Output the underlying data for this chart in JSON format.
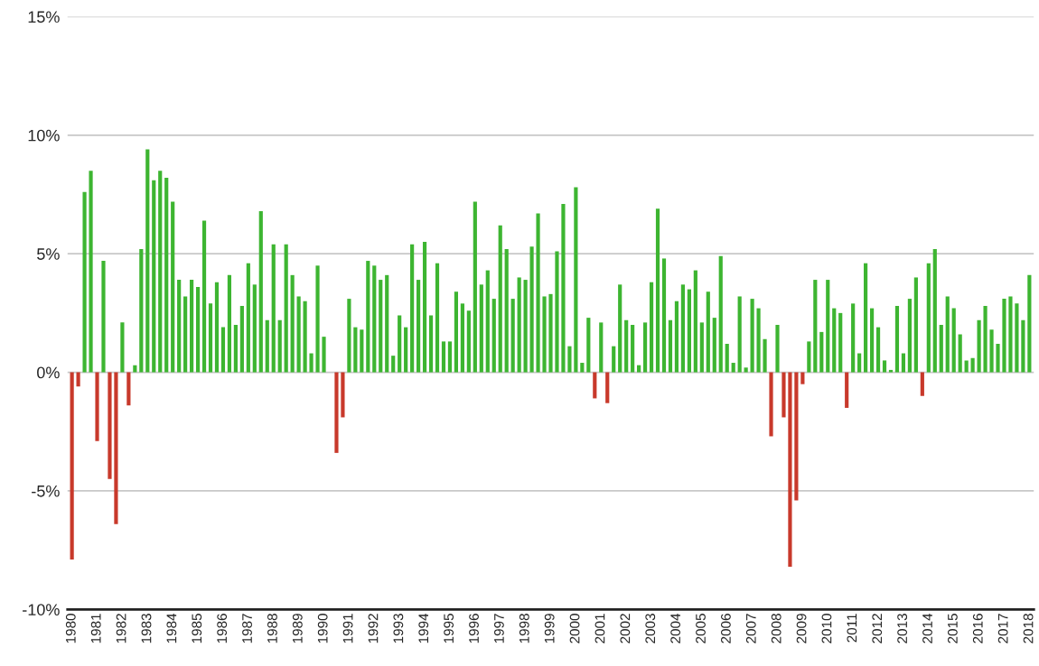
{
  "chart_data": {
    "type": "bar",
    "categories": [
      "1980",
      null,
      null,
      null,
      "1981",
      null,
      null,
      null,
      "1982",
      null,
      null,
      null,
      "1983",
      null,
      null,
      null,
      "1984",
      null,
      null,
      null,
      "1985",
      null,
      null,
      null,
      "1986",
      null,
      null,
      null,
      "1987",
      null,
      null,
      null,
      "1988",
      null,
      null,
      null,
      "1989",
      null,
      null,
      null,
      "1990",
      null,
      null,
      null,
      "1991",
      null,
      null,
      null,
      "1992",
      null,
      null,
      null,
      "1993",
      null,
      null,
      null,
      "1994",
      null,
      null,
      null,
      "1995",
      null,
      null,
      null,
      "1996",
      null,
      null,
      null,
      "1997",
      null,
      null,
      null,
      "1998",
      null,
      null,
      null,
      "1999",
      null,
      null,
      null,
      "2000",
      null,
      null,
      null,
      "2001",
      null,
      null,
      null,
      "2002",
      null,
      null,
      null,
      "2003",
      null,
      null,
      null,
      "2004",
      null,
      null,
      null,
      "2005",
      null,
      null,
      null,
      "2006",
      null,
      null,
      null,
      "2007",
      null,
      null,
      null,
      "2008",
      null,
      null,
      null,
      "2009",
      null,
      null,
      null,
      "2010",
      null,
      null,
      null,
      "2011",
      null,
      null,
      null,
      "2012",
      null,
      null,
      null,
      "2013",
      null,
      null,
      null,
      "2014",
      null,
      null,
      null,
      "2015",
      null,
      null,
      null,
      "2016",
      null,
      null,
      null,
      "2017",
      null,
      null,
      null,
      "2018"
    ],
    "values": [
      -7.9,
      -0.6,
      7.6,
      8.5,
      -2.9,
      4.7,
      -4.5,
      -6.4,
      2.1,
      -1.4,
      0.3,
      5.2,
      9.4,
      8.1,
      8.5,
      8.2,
      7.2,
      3.9,
      3.2,
      3.9,
      3.6,
      6.4,
      2.9,
      3.8,
      1.9,
      4.1,
      2.0,
      2.8,
      4.6,
      3.7,
      6.8,
      2.2,
      5.4,
      2.2,
      5.4,
      4.1,
      3.2,
      3.0,
      0.8,
      4.5,
      1.5,
      0.0,
      -3.4,
      -1.9,
      3.1,
      1.9,
      1.8,
      4.7,
      4.5,
      3.9,
      4.1,
      0.7,
      2.4,
      1.9,
      5.4,
      3.9,
      5.5,
      2.4,
      4.6,
      1.3,
      1.3,
      3.4,
      2.9,
      2.6,
      7.2,
      3.7,
      4.3,
      3.1,
      6.2,
      5.2,
      3.1,
      4.0,
      3.9,
      5.3,
      6.7,
      3.2,
      3.3,
      5.1,
      7.1,
      1.1,
      7.8,
      0.4,
      2.3,
      -1.1,
      2.1,
      -1.3,
      1.1,
      3.7,
      2.2,
      2.0,
      0.3,
      2.1,
      3.8,
      6.9,
      4.8,
      2.2,
      3.0,
      3.7,
      3.5,
      4.3,
      2.1,
      3.4,
      2.3,
      4.9,
      1.2,
      0.4,
      3.2,
      0.2,
      3.1,
      2.7,
      1.4,
      -2.7,
      2.0,
      -1.9,
      -8.2,
      -5.4,
      -0.5,
      1.3,
      3.9,
      1.7,
      3.9,
      2.7,
      2.5,
      -1.5,
      2.9,
      0.8,
      4.6,
      2.7,
      1.9,
      0.5,
      0.1,
      2.8,
      0.8,
      3.1,
      4.0,
      -1.0,
      4.6,
      5.2,
      2.0,
      3.2,
      2.7,
      1.6,
      0.5,
      0.6,
      2.2,
      2.8,
      1.8,
      1.2,
      3.1,
      3.2,
      2.9,
      2.2,
      4.1
    ],
    "colors": [
      "#c8392b",
      "#c8392b",
      "#3db531",
      "#3db531",
      "#c8392b",
      "#3db531",
      "#c8392b",
      "#c8392b",
      "#3db531",
      "#c8392b",
      "#3db531",
      "#3db531",
      "#3db531",
      "#3db531",
      "#3db531",
      "#3db531",
      "#3db531",
      "#3db531",
      "#3db531",
      "#3db531",
      "#3db531",
      "#3db531",
      "#3db531",
      "#3db531",
      "#3db531",
      "#3db531",
      "#3db531",
      "#3db531",
      "#3db531",
      "#3db531",
      "#3db531",
      "#3db531",
      "#3db531",
      "#3db531",
      "#3db531",
      "#3db531",
      "#3db531",
      "#3db531",
      "#3db531",
      "#3db531",
      "#3db531",
      "#3db531",
      "#c8392b",
      "#c8392b",
      "#3db531",
      "#3db531",
      "#3db531",
      "#3db531",
      "#3db531",
      "#3db531",
      "#3db531",
      "#3db531",
      "#3db531",
      "#3db531",
      "#3db531",
      "#3db531",
      "#3db531",
      "#3db531",
      "#3db531",
      "#3db531",
      "#3db531",
      "#3db531",
      "#3db531",
      "#3db531",
      "#3db531",
      "#3db531",
      "#3db531",
      "#3db531",
      "#3db531",
      "#3db531",
      "#3db531",
      "#3db531",
      "#3db531",
      "#3db531",
      "#3db531",
      "#3db531",
      "#3db531",
      "#3db531",
      "#3db531",
      "#3db531",
      "#3db531",
      "#3db531",
      "#3db531",
      "#c8392b",
      "#3db531",
      "#c8392b",
      "#3db531",
      "#3db531",
      "#3db531",
      "#3db531",
      "#3db531",
      "#3db531",
      "#3db531",
      "#3db531",
      "#3db531",
      "#3db531",
      "#3db531",
      "#3db531",
      "#3db531",
      "#3db531",
      "#3db531",
      "#3db531",
      "#3db531",
      "#3db531",
      "#3db531",
      "#3db531",
      "#3db531",
      "#3db531",
      "#3db531",
      "#3db531",
      "#3db531",
      "#c8392b",
      "#3db531",
      "#c8392b",
      "#c8392b",
      "#c8392b",
      "#c8392b",
      "#3db531",
      "#3db531",
      "#3db531",
      "#3db531",
      "#3db531",
      "#3db531",
      "#c8392b",
      "#3db531",
      "#3db531",
      "#3db531",
      "#3db531",
      "#3db531",
      "#3db531",
      "#3db531",
      "#3db531",
      "#3db531",
      "#3db531",
      "#3db531",
      "#c8392b",
      "#3db531",
      "#3db531",
      "#3db531",
      "#3db531",
      "#3db531",
      "#3db531",
      "#3db531",
      "#3db531",
      "#3db531",
      "#3db531",
      "#3db531",
      "#3db531",
      "#3db531",
      "#3db531",
      "#3db531",
      "#3db531",
      "#3db531"
    ],
    "ylim": [
      -10,
      15
    ],
    "yticks": [
      {
        "value": -10,
        "label": "-10%"
      },
      {
        "value": -5,
        "label": "-5%"
      },
      {
        "value": 0,
        "label": "0%"
      },
      {
        "value": 5,
        "label": "5%"
      },
      {
        "value": 10,
        "label": "10%"
      },
      {
        "value": 15,
        "label": "15%"
      }
    ],
    "grid": "y",
    "legend": false
  }
}
